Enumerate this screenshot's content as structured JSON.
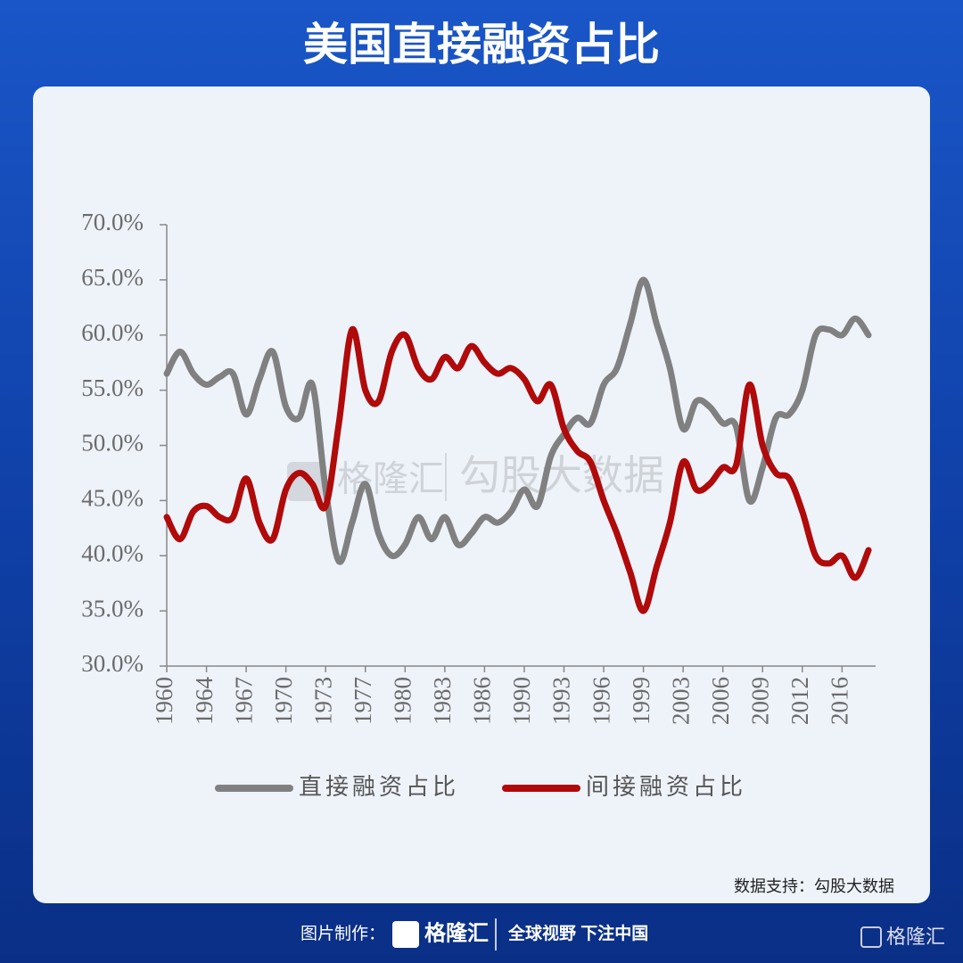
{
  "chart_data": {
    "type": "line",
    "title": "美国直接融资占比",
    "source": "数据支持：勾股大数据",
    "watermark": [
      "格隆汇",
      "勾股大数据"
    ],
    "footer": {
      "made_by": "图片制作：",
      "brand": "格隆汇",
      "slogan": "全球视野 下注中国",
      "corner_brand": "格隆汇"
    },
    "categories": [
      "1960",
      null,
      null,
      "1964",
      null,
      null,
      "1967",
      null,
      null,
      "1970",
      null,
      null,
      "1973",
      null,
      null,
      "1977",
      null,
      null,
      "1980",
      null,
      null,
      "1983",
      null,
      null,
      "1986",
      null,
      null,
      "1990",
      null,
      null,
      "1993",
      null,
      null,
      "1996",
      null,
      null,
      "1999",
      null,
      null,
      "2003",
      null,
      null,
      "2006",
      null,
      null,
      "2009",
      null,
      null,
      "2012",
      null,
      null,
      "2016",
      null,
      null
    ],
    "series": [
      {
        "name": "直接融资占比",
        "color": "#808080",
        "values": [
          56.5,
          58.5,
          56.5,
          55.5,
          56.2,
          56.5,
          52.8,
          56,
          58.5,
          53.5,
          52.5,
          55.5,
          46,
          39.5,
          43,
          46.5,
          42,
          40,
          41,
          43.5,
          41.5,
          43.5,
          41,
          42,
          43.5,
          43,
          44,
          46,
          44.5,
          49,
          51,
          52.5,
          52,
          55.5,
          57,
          61,
          65,
          61,
          57,
          51.5,
          54,
          53.5,
          52,
          51.7,
          45,
          48,
          52.5,
          52.8,
          55,
          60,
          60.5,
          60,
          61.5,
          60
        ]
      },
      {
        "name": "间接融资占比",
        "color": "#b00a0a",
        "values": [
          43.5,
          41.5,
          44,
          44.5,
          43.5,
          43.5,
          47,
          43,
          41.5,
          46,
          47.5,
          46.5,
          44.5,
          52,
          60.5,
          55,
          54,
          58.5,
          60,
          57,
          56,
          58,
          57,
          59,
          57.5,
          56.5,
          57,
          56,
          54,
          55.5,
          51.5,
          49.5,
          48.5,
          45,
          42,
          38.5,
          35,
          39,
          43,
          48.5,
          46,
          46.5,
          48,
          48.2,
          55.5,
          50,
          47.5,
          47,
          44,
          40,
          39.3,
          40,
          38,
          40.5
        ]
      }
    ],
    "ylim": [
      30,
      70
    ],
    "yticks": [
      {
        "value": 30,
        "label": "30.0%"
      },
      {
        "value": 35,
        "label": "35.0%"
      },
      {
        "value": 40,
        "label": "40.0%"
      },
      {
        "value": 45,
        "label": "45.0%"
      },
      {
        "value": 50,
        "label": "50.0%"
      },
      {
        "value": 55,
        "label": "55.0%"
      },
      {
        "value": 60,
        "label": "60.0%"
      },
      {
        "value": 65,
        "label": "65.0%"
      },
      {
        "value": 70,
        "label": "70.0%"
      }
    ],
    "grid": false,
    "legend": "bottom"
  }
}
